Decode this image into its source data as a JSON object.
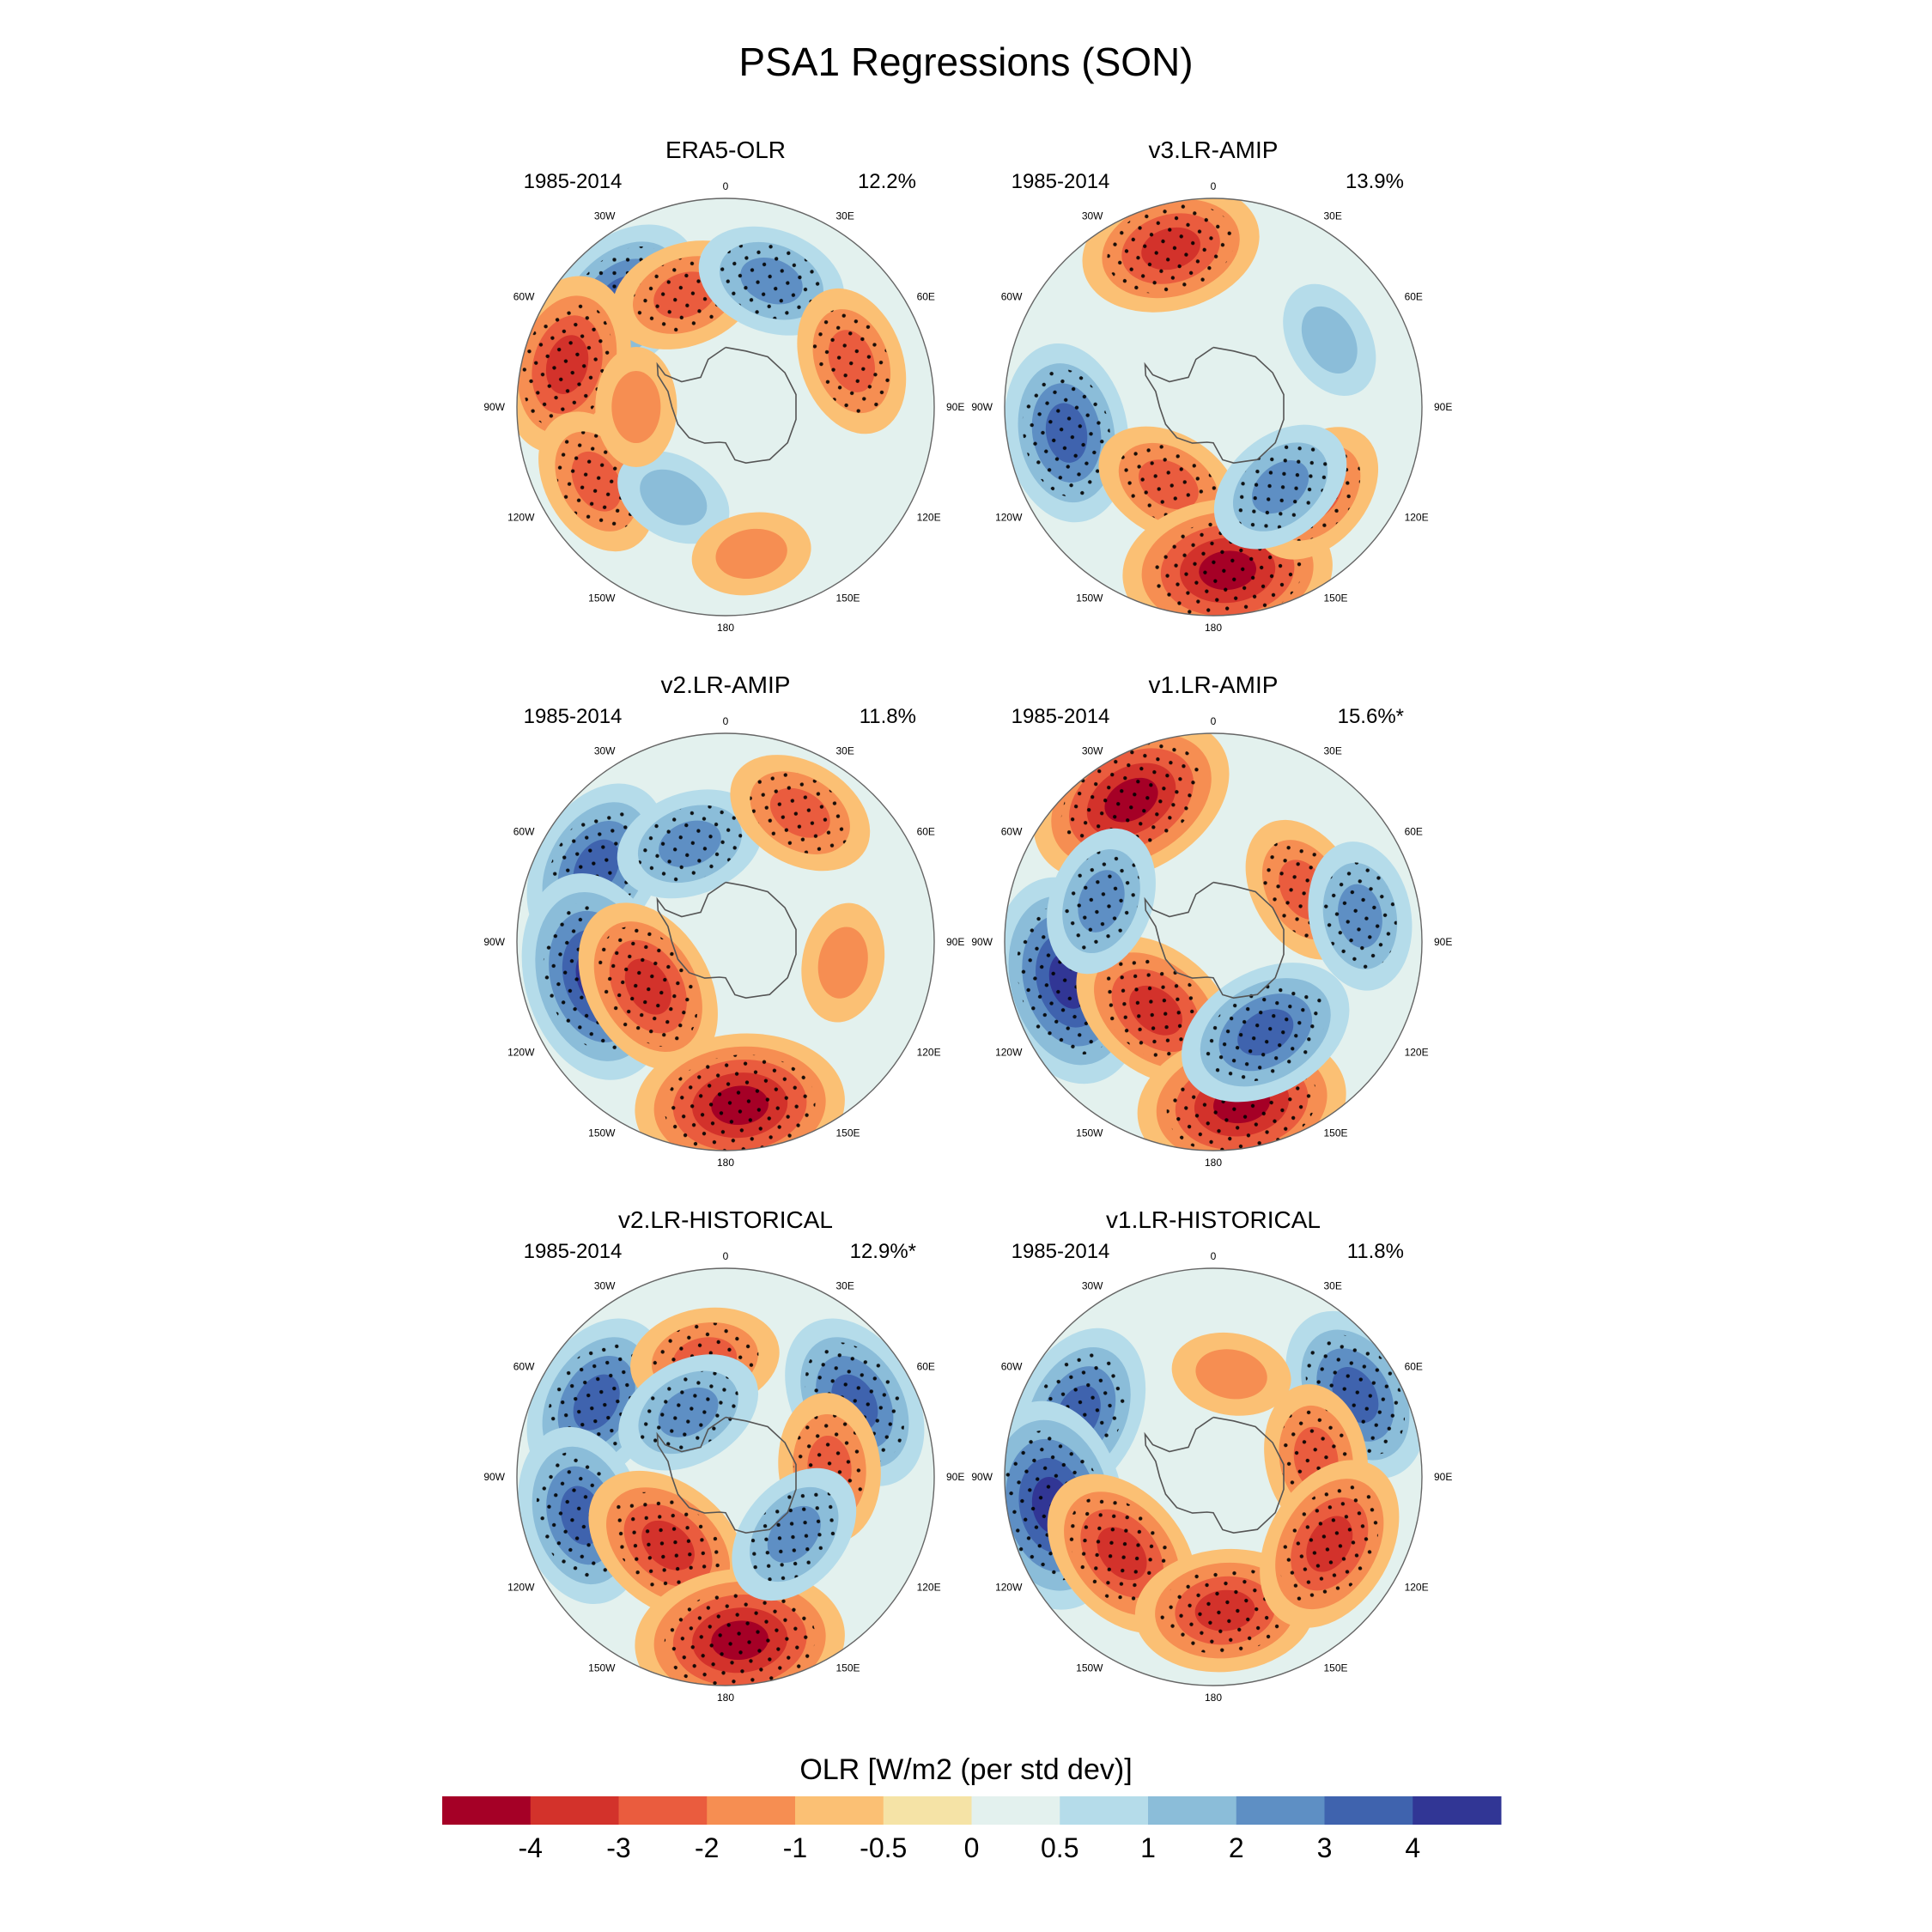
{
  "figure_title": "PSA1 Regressions (SON)",
  "colorbar": {
    "title": "OLR [W/m2 (per std dev)]",
    "colors": [
      "#a50026",
      "#d3322b",
      "#ea5c3e",
      "#f68e52",
      "#fbc074",
      "#f5e3a6",
      "#e3f1ee",
      "#b5dcea",
      "#8bbdd9",
      "#5e8fc4",
      "#3f63ae",
      "#313695"
    ],
    "tick_labels": [
      "-4",
      "-3",
      "-2",
      "-1",
      "-0.5",
      "0",
      "0.5",
      "1",
      "2",
      "3",
      "4"
    ]
  },
  "map_labels": {
    "lon_labels": [
      "0",
      "30E",
      "60E",
      "90E",
      "120E",
      "150E",
      "180",
      "150W",
      "120W",
      "90W",
      "60W",
      "30W"
    ]
  },
  "panels": [
    {
      "title": "ERA5-OLR",
      "period": "1985-2014",
      "variance": "12.2%",
      "features": [
        {
          "lon": -45,
          "lat": -40,
          "value": 3
        },
        {
          "lon": -75,
          "lat": -35,
          "value": -3
        },
        {
          "lon": -20,
          "lat": -50,
          "value": -2
        },
        {
          "lon": 20,
          "lat": -45,
          "value": 2
        },
        {
          "lon": 70,
          "lat": -45,
          "value": -2
        },
        {
          "lon": -120,
          "lat": -40,
          "value": -2
        },
        {
          "lon": -150,
          "lat": -55,
          "value": 1
        },
        {
          "lon": 170,
          "lat": -40,
          "value": -1
        },
        {
          "lon": -90,
          "lat": -60,
          "value": -1
        }
      ]
    },
    {
      "title": "v3.LR-AMIP",
      "period": "1985-2014",
      "variance": "13.9%",
      "features": [
        {
          "lon": -15,
          "lat": -35,
          "value": -3
        },
        {
          "lon": -100,
          "lat": -40,
          "value": 3
        },
        {
          "lon": -150,
          "lat": -60,
          "value": -2
        },
        {
          "lon": 175,
          "lat": -35,
          "value": -4
        },
        {
          "lon": 130,
          "lat": -45,
          "value": -2
        },
        {
          "lon": 140,
          "lat": -55,
          "value": 2
        },
        {
          "lon": 60,
          "lat": -45,
          "value": 1
        }
      ]
    },
    {
      "title": "v2.LR-AMIP",
      "period": "1985-2014",
      "variance": "11.8%",
      "features": [
        {
          "lon": -60,
          "lat": -40,
          "value": 3
        },
        {
          "lon": -105,
          "lat": -45,
          "value": 4
        },
        {
          "lon": -120,
          "lat": -60,
          "value": -3
        },
        {
          "lon": 175,
          "lat": -35,
          "value": -4
        },
        {
          "lon": -20,
          "lat": -55,
          "value": 2
        },
        {
          "lon": 30,
          "lat": -40,
          "value": -2
        },
        {
          "lon": 100,
          "lat": -50,
          "value": -1
        }
      ]
    },
    {
      "title": "v1.LR-AMIP",
      "period": "1985-2014",
      "variance": "15.6%*",
      "features": [
        {
          "lon": -30,
          "lat": -35,
          "value": -4
        },
        {
          "lon": -105,
          "lat": -40,
          "value": 4
        },
        {
          "lon": -140,
          "lat": -60,
          "value": -3
        },
        {
          "lon": 170,
          "lat": -35,
          "value": -4
        },
        {
          "lon": 150,
          "lat": -55,
          "value": 3
        },
        {
          "lon": 60,
          "lat": -55,
          "value": -2
        },
        {
          "lon": 80,
          "lat": -40,
          "value": 2
        },
        {
          "lon": -70,
          "lat": -50,
          "value": 2
        }
      ]
    },
    {
      "title": "v2.LR-HISTORICAL",
      "period": "1985-2014",
      "variance": "12.9%*",
      "features": [
        {
          "lon": -60,
          "lat": -40,
          "value": 3
        },
        {
          "lon": -105,
          "lat": -40,
          "value": 3
        },
        {
          "lon": -140,
          "lat": -60,
          "value": -3
        },
        {
          "lon": 175,
          "lat": -35,
          "value": -4
        },
        {
          "lon": 60,
          "lat": -40,
          "value": 3
        },
        {
          "lon": 85,
          "lat": -55,
          "value": -2
        },
        {
          "lon": -10,
          "lat": -50,
          "value": -2
        },
        {
          "lon": -30,
          "lat": -65,
          "value": 2
        },
        {
          "lon": 130,
          "lat": -60,
          "value": 2
        }
      ]
    },
    {
      "title": "v1.LR-HISTORICAL",
      "period": "1985-2014",
      "variance": "11.8%",
      "features": [
        {
          "lon": -65,
          "lat": -40,
          "value": 3
        },
        {
          "lon": -100,
          "lat": -35,
          "value": 4
        },
        {
          "lon": -130,
          "lat": -50,
          "value": -3
        },
        {
          "lon": 175,
          "lat": -45,
          "value": -3
        },
        {
          "lon": 60,
          "lat": -35,
          "value": 3
        },
        {
          "lon": 80,
          "lat": -55,
          "value": -2
        },
        {
          "lon": 120,
          "lat": -45,
          "value": -3
        },
        {
          "lon": 10,
          "lat": -55,
          "value": -1
        }
      ]
    }
  ]
}
